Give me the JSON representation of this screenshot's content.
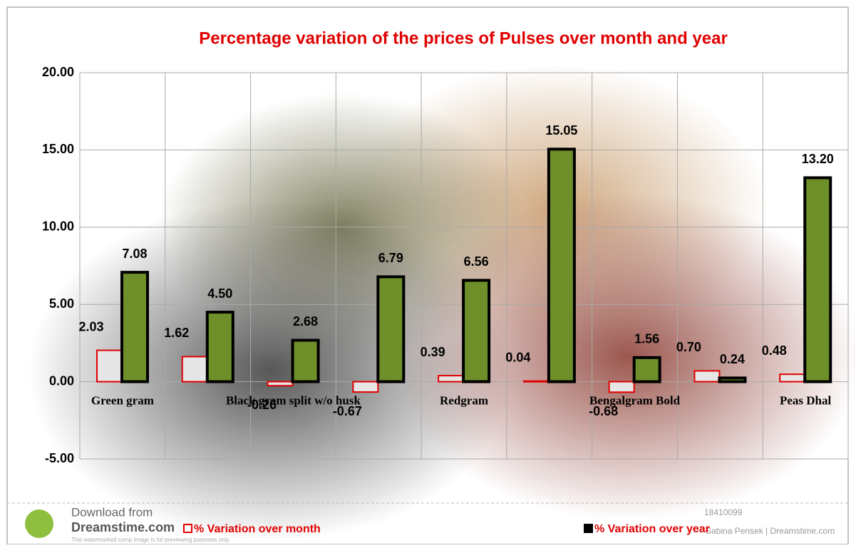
{
  "chart_data": {
    "type": "bar",
    "title": "Percentage variation of the prices of Pulses over month and year",
    "categories": [
      "Green gram",
      null,
      "Black gram  split w/o husk",
      null,
      "Redgram",
      null,
      "Bengalgram Bold",
      null,
      "Peas Dhal"
    ],
    "series": [
      {
        "name": "% Variation over month",
        "color": "#e6e6e6",
        "edgecolor": "#e00000",
        "values": [
          2.03,
          1.62,
          -0.26,
          -0.67,
          0.39,
          0.04,
          -0.68,
          0.7,
          0.48
        ],
        "value_labels": [
          "2.03",
          "1.62",
          "-0.26",
          "-0.67",
          "0.39",
          "0.04",
          "-0.68",
          "0.70",
          "0.48"
        ]
      },
      {
        "name": "% Variation over year",
        "color": "#6f8f2a",
        "edgecolor": "#000000",
        "values": [
          7.08,
          4.5,
          2.68,
          6.79,
          6.56,
          15.05,
          1.56,
          0.24,
          13.2
        ],
        "value_labels": [
          "7.08",
          "4.50",
          "2.68",
          "6.79",
          "6.56",
          "15.05",
          "1.56",
          "0.24",
          "13.20"
        ]
      }
    ],
    "ylim": [
      -5,
      20
    ],
    "yticks": [
      {
        "value": -5,
        "label": "-5.00"
      },
      {
        "value": 0,
        "label": "0.00"
      },
      {
        "value": 5,
        "label": "5.00"
      },
      {
        "value": 10,
        "label": "10.00"
      },
      {
        "value": 15,
        "label": "15.00"
      },
      {
        "value": 20,
        "label": "20.00"
      }
    ],
    "grid": true,
    "legend": "bottom"
  },
  "watermark": {
    "line1": "Download from",
    "line2": "Dreamstime.com",
    "line3": "This watermarked comp image is for previewing purposes only.",
    "id": "18410099",
    "credit": "Sabina Pensek | Dreamstime.com"
  }
}
